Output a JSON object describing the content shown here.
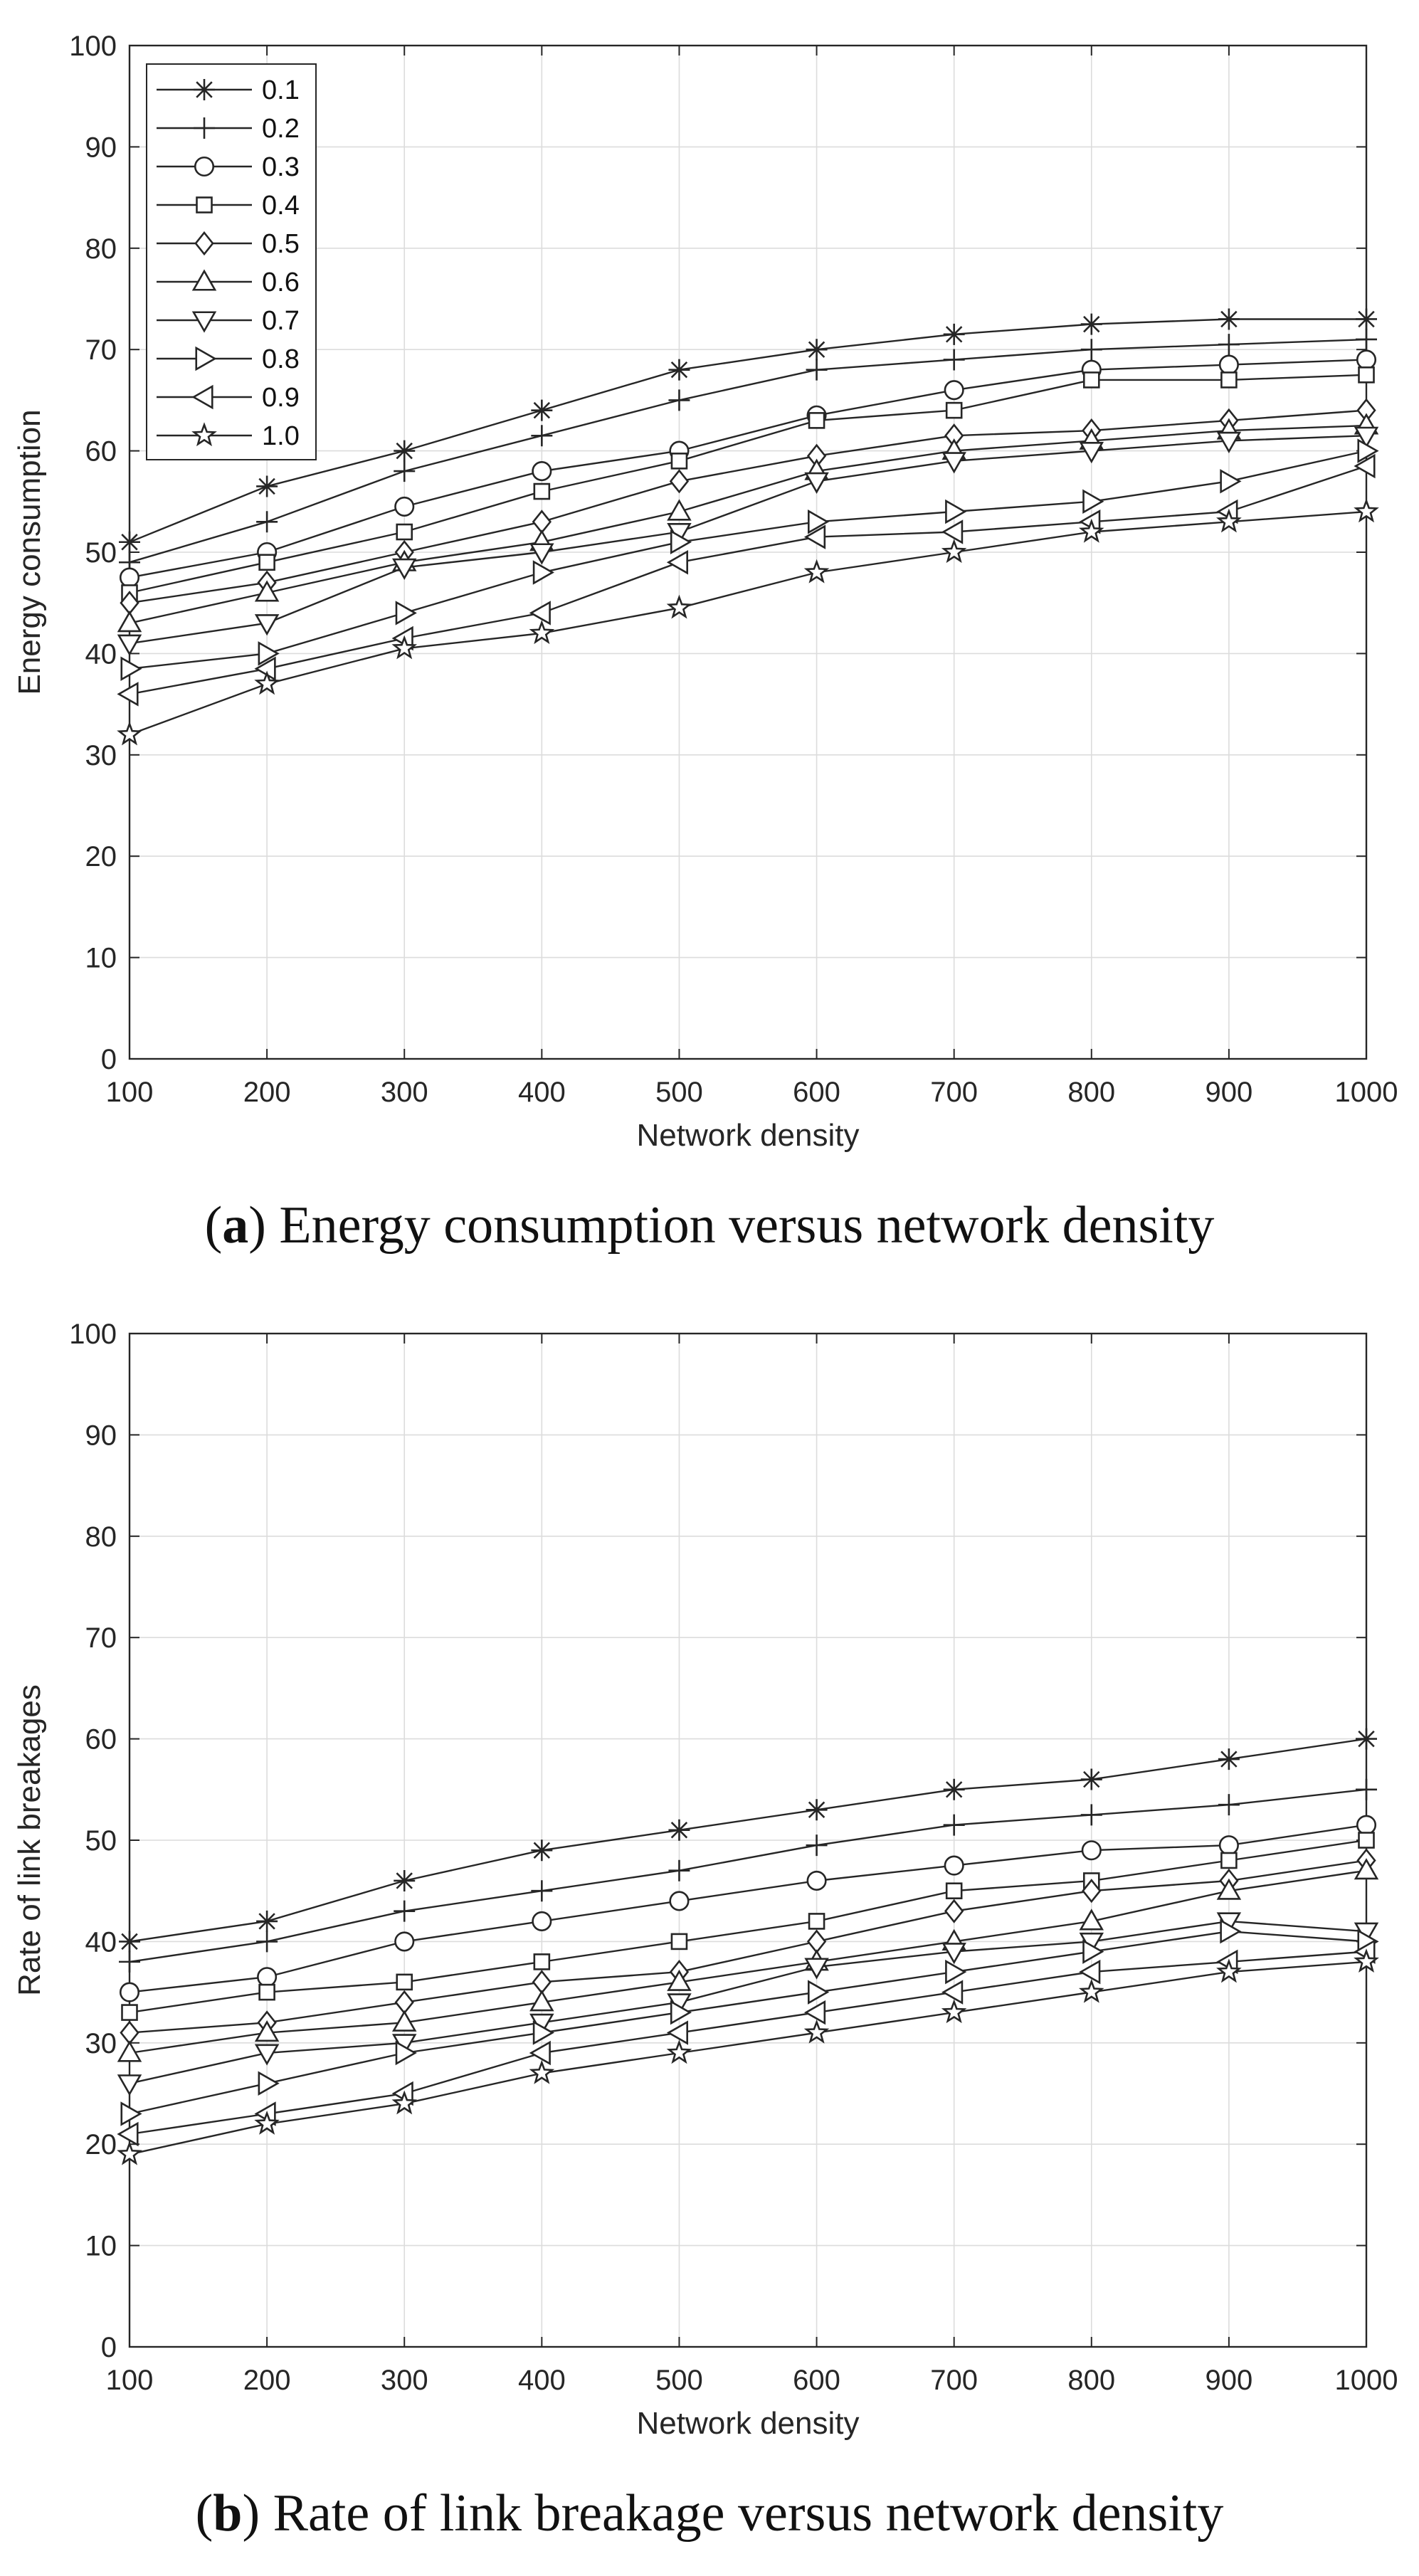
{
  "legend_labels": [
    "0.1",
    "0.2",
    "0.3",
    "0.4",
    "0.5",
    "0.6",
    "0.7",
    "0.8",
    "0.9",
    "1.0"
  ],
  "markers": [
    "asterisk",
    "plus",
    "circle",
    "square",
    "diamond",
    "triangle-up",
    "triangle-down",
    "triangle-right",
    "triangle-left",
    "star"
  ],
  "colors": {
    "line": "#262626",
    "grid": "#dcdcdc",
    "axes": "#262626",
    "background": "#ffffff"
  },
  "panels": [
    {
      "caption": {
        "letter": "a",
        "text": "Energy consumption versus network density"
      }
    },
    {
      "caption": {
        "letter": "b",
        "text": "Rate of link breakage versus network density"
      }
    }
  ],
  "chart_data": [
    {
      "type": "line",
      "title": "",
      "xlabel": "Network density",
      "ylabel": "Energy consumption",
      "x": [
        100,
        200,
        300,
        400,
        500,
        600,
        700,
        800,
        900,
        1000
      ],
      "xlim": [
        100,
        1000
      ],
      "ylim": [
        0,
        100
      ],
      "xticks": [
        100,
        200,
        300,
        400,
        500,
        600,
        700,
        800,
        900,
        1000
      ],
      "yticks": [
        0,
        10,
        20,
        30,
        40,
        50,
        60,
        70,
        80,
        90,
        100
      ],
      "grid": true,
      "legend_position": "top-left",
      "series": [
        {
          "name": "0.1",
          "marker": "asterisk",
          "values": [
            51,
            56.5,
            60,
            64,
            68,
            70,
            71.5,
            72.5,
            73,
            73
          ]
        },
        {
          "name": "0.2",
          "marker": "plus",
          "values": [
            49,
            53,
            58,
            61.5,
            65,
            68,
            69,
            70,
            70.5,
            71
          ]
        },
        {
          "name": "0.3",
          "marker": "circle",
          "values": [
            47.5,
            50,
            54.5,
            58,
            60,
            63.5,
            66,
            68,
            68.5,
            69
          ]
        },
        {
          "name": "0.4",
          "marker": "square",
          "values": [
            46,
            49,
            52,
            56,
            59,
            63,
            64,
            67,
            67,
            67.5
          ]
        },
        {
          "name": "0.5",
          "marker": "diamond",
          "values": [
            45,
            47,
            50,
            53,
            57,
            59.5,
            61.5,
            62,
            63,
            64
          ]
        },
        {
          "name": "0.6",
          "marker": "triangle-up",
          "values": [
            43,
            46,
            49,
            51,
            54,
            58,
            60,
            61,
            62,
            62.5
          ]
        },
        {
          "name": "0.7",
          "marker": "triangle-down",
          "values": [
            41,
            43,
            48.5,
            50,
            52,
            57,
            59,
            60,
            61,
            61.5
          ]
        },
        {
          "name": "0.8",
          "marker": "triangle-right",
          "values": [
            38.5,
            40,
            44,
            48,
            51,
            53,
            54,
            55,
            57,
            60
          ]
        },
        {
          "name": "0.9",
          "marker": "triangle-left",
          "values": [
            36,
            38.5,
            41.5,
            44,
            49,
            51.5,
            52,
            53,
            54,
            58.5
          ]
        },
        {
          "name": "1.0",
          "marker": "star",
          "values": [
            32,
            37,
            40.5,
            42,
            44.5,
            48,
            50,
            52,
            53,
            54
          ]
        }
      ]
    },
    {
      "type": "line",
      "title": "",
      "xlabel": "Network density",
      "ylabel": "Rate of link breakages",
      "x": [
        100,
        200,
        300,
        400,
        500,
        600,
        700,
        800,
        900,
        1000
      ],
      "xlim": [
        100,
        1000
      ],
      "ylim": [
        0,
        100
      ],
      "xticks": [
        100,
        200,
        300,
        400,
        500,
        600,
        700,
        800,
        900,
        1000
      ],
      "yticks": [
        0,
        10,
        20,
        30,
        40,
        50,
        60,
        70,
        80,
        90,
        100
      ],
      "grid": true,
      "legend_position": "none",
      "series": [
        {
          "name": "0.1",
          "marker": "asterisk",
          "values": [
            40,
            42,
            46,
            49,
            51,
            53,
            55,
            56,
            58,
            60
          ]
        },
        {
          "name": "0.2",
          "marker": "plus",
          "values": [
            38,
            40,
            43,
            45,
            47,
            49.5,
            51.5,
            52.5,
            53.5,
            55
          ]
        },
        {
          "name": "0.3",
          "marker": "circle",
          "values": [
            35,
            36.5,
            40,
            42,
            44,
            46,
            47.5,
            49,
            49.5,
            51.5
          ]
        },
        {
          "name": "0.4",
          "marker": "square",
          "values": [
            33,
            35,
            36,
            38,
            40,
            42,
            45,
            46,
            48,
            50
          ]
        },
        {
          "name": "0.5",
          "marker": "diamond",
          "values": [
            31,
            32,
            34,
            36,
            37,
            40,
            43,
            45,
            46,
            48
          ]
        },
        {
          "name": "0.6",
          "marker": "triangle-up",
          "values": [
            29,
            31,
            32,
            34,
            36,
            38,
            40,
            42,
            45,
            47
          ]
        },
        {
          "name": "0.7",
          "marker": "triangle-down",
          "values": [
            26,
            29,
            30,
            32,
            34,
            37.5,
            39,
            40,
            42,
            41
          ]
        },
        {
          "name": "0.8",
          "marker": "triangle-right",
          "values": [
            23,
            26,
            29,
            31,
            33,
            35,
            37,
            39,
            41,
            40
          ]
        },
        {
          "name": "0.9",
          "marker": "triangle-left",
          "values": [
            21,
            23,
            25,
            29,
            31,
            33,
            35,
            37,
            38,
            39
          ]
        },
        {
          "name": "1.0",
          "marker": "star",
          "values": [
            19,
            22,
            24,
            27,
            29,
            31,
            33,
            35,
            37,
            38
          ]
        }
      ]
    }
  ]
}
